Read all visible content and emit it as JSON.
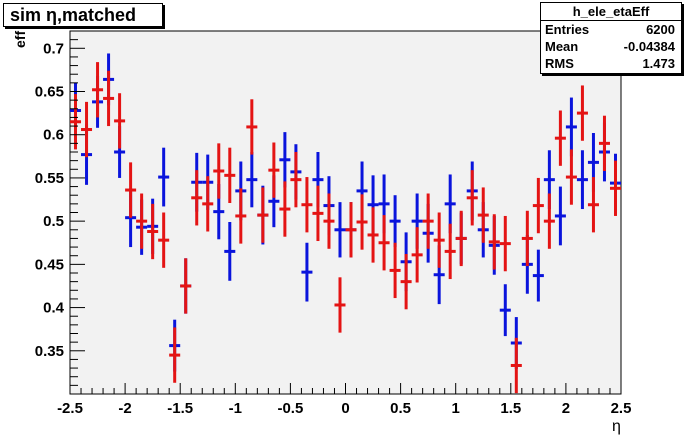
{
  "title": "sim η,matched",
  "stats": {
    "name": "h_ele_etaEff",
    "rows": [
      {
        "label": "Entries",
        "value": "6200"
      },
      {
        "label": "Mean",
        "value": "-0.04384"
      },
      {
        "label": "RMS",
        "value": "1.473"
      }
    ]
  },
  "chart_data": {
    "type": "scatter",
    "xlabel": "η",
    "ylabel": "eff",
    "xlim": [
      -2.5,
      2.5
    ],
    "ylim": [
      0.3,
      0.72
    ],
    "xticks": [
      "-2.5",
      "-2",
      "-1.5",
      "-1",
      "-0.5",
      "0",
      "0.5",
      "1",
      "1.5",
      "2",
      "2.5"
    ],
    "yticks": [
      "0.35",
      "0.4",
      "0.45",
      "0.5",
      "0.55",
      "0.6",
      "0.65",
      "0.7"
    ],
    "grid": false,
    "series": [
      {
        "color": "#0a14dc",
        "x": [
          -2.45,
          -2.35,
          -2.25,
          -2.15,
          -2.05,
          -1.95,
          -1.85,
          -1.75,
          -1.65,
          -1.55,
          -1.45,
          -1.35,
          -1.25,
          -1.15,
          -1.05,
          -0.95,
          -0.85,
          -0.75,
          -0.65,
          -0.55,
          -0.45,
          -0.35,
          -0.25,
          -0.15,
          -0.05,
          0.05,
          0.15,
          0.25,
          0.35,
          0.45,
          0.55,
          0.65,
          0.75,
          0.85,
          0.95,
          1.05,
          1.15,
          1.25,
          1.35,
          1.45,
          1.55,
          1.65,
          1.75,
          1.85,
          1.95,
          2.05,
          2.15,
          2.25,
          2.35,
          2.45
        ],
        "y": [
          0.628,
          0.577,
          0.638,
          0.664,
          0.58,
          0.504,
          0.493,
          0.494,
          0.551,
          0.356,
          0.425,
          0.545,
          0.545,
          0.511,
          0.465,
          0.535,
          0.548,
          0.507,
          0.523,
          0.571,
          0.557,
          0.441,
          0.548,
          0.518,
          0.49,
          0.49,
          0.535,
          0.519,
          0.52,
          0.5,
          0.453,
          0.5,
          0.486,
          0.438,
          0.52,
          0.48,
          0.535,
          0.49,
          0.472,
          0.397,
          0.359,
          0.45,
          0.437,
          0.548,
          0.506,
          0.609,
          0.548,
          0.568,
          0.58,
          0.544
        ],
        "err": [
          0.032,
          0.035,
          0.03,
          0.03,
          0.03,
          0.034,
          0.032,
          0.032,
          0.034,
          0.03,
          0.032,
          0.034,
          0.032,
          0.032,
          0.034,
          0.034,
          0.032,
          0.034,
          0.03,
          0.032,
          0.032,
          0.034,
          0.032,
          0.034,
          0.032,
          0.032,
          0.034,
          0.034,
          0.034,
          0.03,
          0.034,
          0.032,
          0.034,
          0.034,
          0.034,
          0.03,
          0.034,
          0.032,
          0.034,
          0.03,
          0.03,
          0.034,
          0.03,
          0.034,
          0.034,
          0.034,
          0.034,
          0.034,
          0.034,
          0.034
        ]
      },
      {
        "color": "#e41414",
        "x": [
          -2.45,
          -2.35,
          -2.25,
          -2.15,
          -2.05,
          -1.95,
          -1.85,
          -1.75,
          -1.65,
          -1.55,
          -1.45,
          -1.35,
          -1.25,
          -1.15,
          -1.05,
          -0.95,
          -0.85,
          -0.75,
          -0.65,
          -0.55,
          -0.45,
          -0.35,
          -0.25,
          -0.15,
          -0.05,
          0.05,
          0.15,
          0.25,
          0.35,
          0.45,
          0.55,
          0.65,
          0.75,
          0.85,
          0.95,
          1.05,
          1.15,
          1.25,
          1.35,
          1.45,
          1.55,
          1.65,
          1.75,
          1.85,
          1.95,
          2.05,
          2.15,
          2.25,
          2.35,
          2.45
        ],
        "y": [
          0.615,
          0.606,
          0.652,
          0.642,
          0.616,
          0.536,
          0.5,
          0.488,
          0.478,
          0.345,
          0.425,
          0.527,
          0.52,
          0.558,
          0.553,
          0.506,
          0.609,
          0.507,
          0.559,
          0.514,
          0.548,
          0.519,
          0.509,
          0.5,
          0.403,
          0.49,
          0.499,
          0.484,
          0.475,
          0.443,
          0.43,
          0.461,
          0.5,
          0.478,
          0.465,
          0.48,
          0.527,
          0.507,
          0.476,
          0.474,
          0.333,
          0.48,
          0.518,
          0.5,
          0.596,
          0.551,
          0.625,
          0.519,
          0.59,
          0.538
        ]
      }
    ]
  }
}
